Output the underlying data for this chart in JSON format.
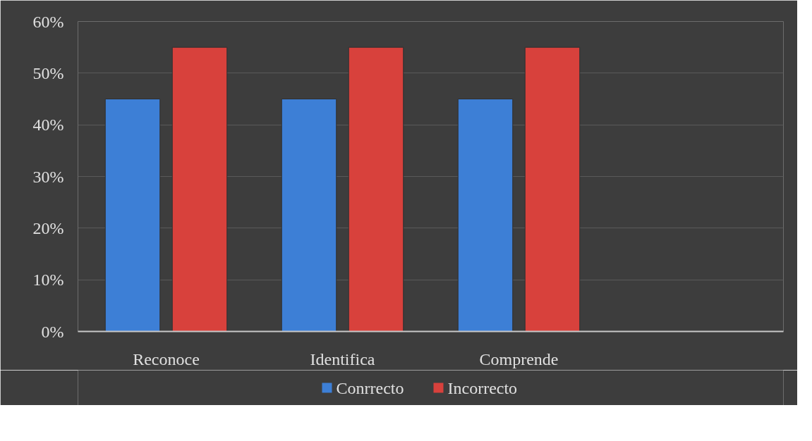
{
  "chart_data": {
    "type": "bar",
    "categories": [
      "Reconoce",
      "Identifica",
      "Comprende",
      null
    ],
    "series": [
      {
        "name": "Conrrecto",
        "color": "#3d7fd6",
        "values": [
          45,
          45,
          45,
          null
        ]
      },
      {
        "name": "Incorrecto",
        "color": "#d8413c",
        "values": [
          55,
          55,
          55,
          null
        ]
      }
    ],
    "ylim": [
      0,
      60
    ],
    "yticks": [
      {
        "value": 0,
        "label": "0%"
      },
      {
        "value": 10,
        "label": "10%"
      },
      {
        "value": 20,
        "label": "20%"
      },
      {
        "value": 30,
        "label": "30%"
      },
      {
        "value": 40,
        "label": "40%"
      },
      {
        "value": 50,
        "label": "50%"
      },
      {
        "value": 60,
        "label": "60%"
      }
    ],
    "grid": "y",
    "legend": "bottom"
  }
}
